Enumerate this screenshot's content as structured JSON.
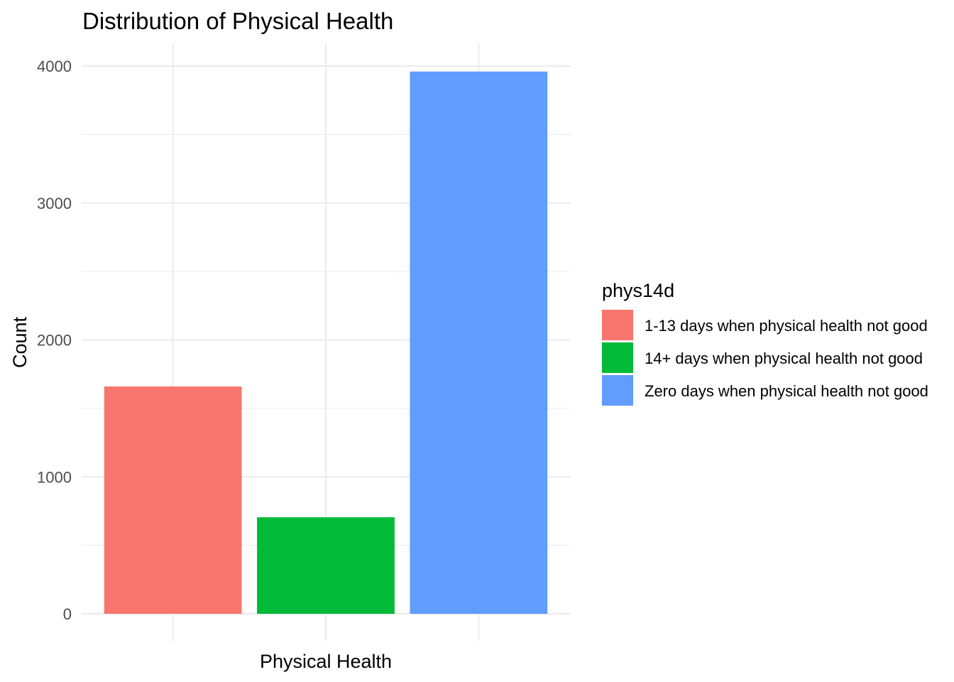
{
  "chart_data": {
    "type": "bar",
    "title": "Distribution of Physical Health",
    "xlabel": "Physical Health",
    "ylabel": "Count",
    "categories": [
      "1-13 days when physical health not good",
      "14+ days when physical health not good",
      "Zero days when physical health not good"
    ],
    "values": [
      1660,
      705,
      3960
    ],
    "colors": [
      "#F8766D",
      "#00BA38",
      "#619CFF"
    ],
    "ylim": [
      0,
      4000
    ],
    "yticks": [
      0,
      1000,
      2000,
      3000,
      4000
    ],
    "grid": true,
    "legend": {
      "title": "phys14d",
      "position": "right",
      "entries": [
        "1-13 days when physical health not good",
        "14+ days when physical health not good",
        "Zero days when physical health not good"
      ]
    }
  }
}
